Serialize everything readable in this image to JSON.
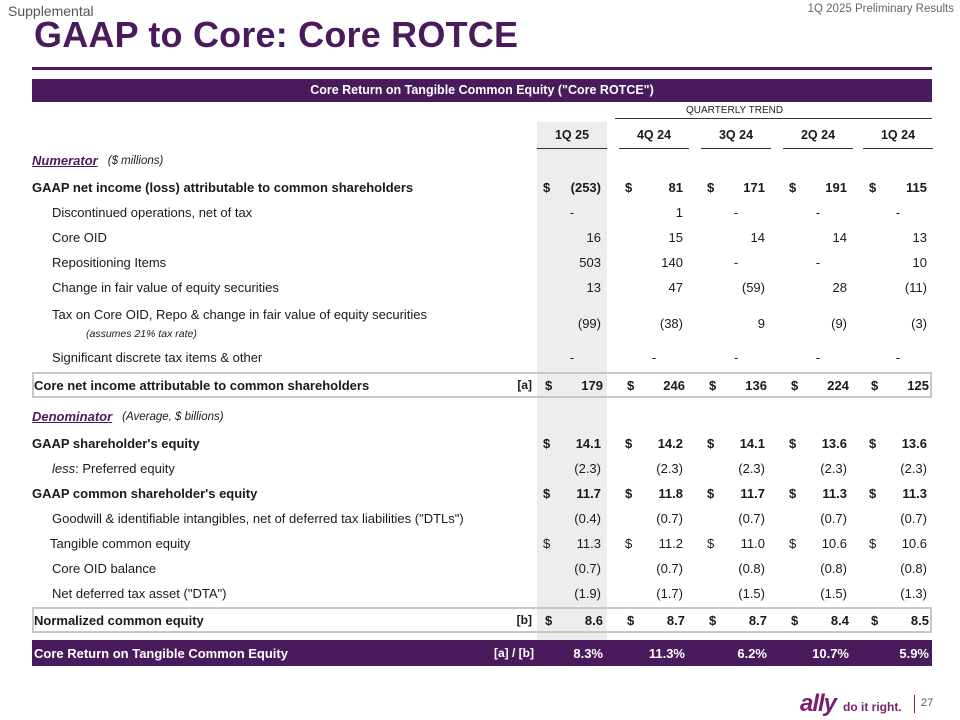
{
  "header": {
    "supplemental": "Supplemental",
    "prelim": "1Q 2025 Preliminary Results",
    "title": "GAAP to Core: Core ROTCE"
  },
  "table": {
    "title": "Core Return on Tangible Common Equity (\"Core ROTCE\")",
    "trend_label": "QUARTERLY TREND",
    "columns": [
      "1Q 25",
      "4Q 24",
      "3Q 24",
      "2Q 24",
      "1Q 24"
    ],
    "numerator": {
      "label": "Numerator",
      "note": "($ millions)"
    },
    "denominator": {
      "label": "Denominator",
      "note": "(Average, $ billions)"
    },
    "rows": {
      "gaap_ni": {
        "label": "GAAP net income (loss) attributable to common shareholders",
        "values": [
          "(253)",
          "81",
          "171",
          "191",
          "115"
        ]
      },
      "disc_ops": {
        "label": "Discontinued operations, net of tax",
        "values": [
          "-",
          "1",
          "-",
          "-",
          "-"
        ]
      },
      "core_oid": {
        "label": "Core OID",
        "values": [
          "16",
          "15",
          "14",
          "14",
          "13"
        ]
      },
      "repositioning": {
        "label": "Repositioning Items",
        "values": [
          "503",
          "140",
          "-",
          "-",
          "10"
        ]
      },
      "fv_change": {
        "label": "Change in fair value of equity securities",
        "values": [
          "13",
          "47",
          "(59)",
          "28",
          "(11)"
        ]
      },
      "tax": {
        "label": "Tax on Core OID, Repo & change in fair value of equity securities",
        "sub": "(assumes 21% tax rate)",
        "values": [
          "(99)",
          "(38)",
          "9",
          "(9)",
          "(3)"
        ]
      },
      "discrete": {
        "label": "Significant discrete tax items & other",
        "values": [
          "-",
          "-",
          "-",
          "-",
          "-"
        ]
      },
      "core_ni": {
        "label": "Core net income attributable to common shareholders",
        "ref": "[a]",
        "values": [
          "179",
          "246",
          "136",
          "224",
          "125"
        ]
      },
      "gaap_equity": {
        "label": "GAAP shareholder's equity",
        "values": [
          "14.1",
          "14.2",
          "14.1",
          "13.6",
          "13.6"
        ]
      },
      "preferred": {
        "prefix": "less",
        "label": ":  Preferred equity",
        "values": [
          "(2.3)",
          "(2.3)",
          "(2.3)",
          "(2.3)",
          "(2.3)"
        ]
      },
      "common_equity": {
        "label": "GAAP common shareholder's equity",
        "values": [
          "11.7",
          "11.8",
          "11.7",
          "11.3",
          "11.3"
        ]
      },
      "goodwill": {
        "label": "Goodwill & identifiable intangibles, net of deferred tax liabilities (\"DTLs\")",
        "values": [
          "(0.4)",
          "(0.7)",
          "(0.7)",
          "(0.7)",
          "(0.7)"
        ]
      },
      "tangible": {
        "label": "Tangible common equity",
        "values": [
          "11.3",
          "11.2",
          "11.0",
          "10.6",
          "10.6"
        ]
      },
      "oid_balance": {
        "label": "Core OID balance",
        "values": [
          "(0.7)",
          "(0.7)",
          "(0.8)",
          "(0.8)",
          "(0.8)"
        ]
      },
      "dta": {
        "label": "Net deferred tax asset (\"DTA\")",
        "values": [
          "(1.9)",
          "(1.7)",
          "(1.5)",
          "(1.5)",
          "(1.3)"
        ]
      },
      "normalized": {
        "label": "Normalized common equity",
        "ref": "[b]",
        "values": [
          "8.6",
          "8.7",
          "8.7",
          "8.4",
          "8.5"
        ]
      },
      "rotce": {
        "label": "Core Return on Tangible Common Equity",
        "ref": "[a] / [b]",
        "values": [
          "8.3%",
          "11.3%",
          "6.2%",
          "10.7%",
          "5.9%"
        ]
      }
    },
    "currency": "$"
  },
  "footer": {
    "brand": "ally",
    "tagline": "do it right.",
    "page": "27"
  },
  "colors": {
    "accent": "#4a1b5c",
    "brand": "#7a1f6e",
    "shade": "#ededed"
  }
}
